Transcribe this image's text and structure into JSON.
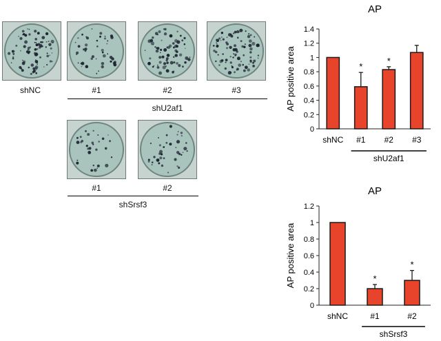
{
  "plates": {
    "row1": [
      {
        "label": "shNC",
        "density": 0.95,
        "seed": 3
      },
      {
        "label": "#1",
        "density": 0.45,
        "seed": 11
      },
      {
        "label": "#2",
        "density": 0.8,
        "seed": 19
      },
      {
        "label": "#3",
        "density": 1.0,
        "seed": 27
      }
    ],
    "row1_group_label": "shU2af1",
    "row2": [
      {
        "label": "#1",
        "density": 0.25,
        "seed": 41
      },
      {
        "label": "#2",
        "density": 0.35,
        "seed": 53
      }
    ],
    "row2_group_label": "shSrsf3"
  },
  "colors": {
    "bar": "#e8432b",
    "plate_bg": "#a9c4bc",
    "colony": "#1a2130"
  },
  "chart_data": [
    {
      "type": "bar",
      "title": "AP",
      "ylabel": "AP positive area",
      "categories": [
        "shNC",
        "#1",
        "#2",
        "#3"
      ],
      "values": [
        1.0,
        0.59,
        0.83,
        1.07
      ],
      "errors": [
        0,
        0.2,
        0.04,
        0.1
      ],
      "significance": [
        "",
        "*",
        "*",
        ""
      ],
      "ylim": [
        0,
        1.4
      ],
      "yticks": [
        "0",
        "0.2",
        "0.4",
        "0.6",
        "0.8",
        "1",
        "1.2",
        "1.4"
      ],
      "group_label": "shU2af1",
      "group_span": [
        1,
        3
      ]
    },
    {
      "type": "bar",
      "title": "AP",
      "ylabel": "AP positive area",
      "categories": [
        "shNC",
        "#1",
        "#2"
      ],
      "values": [
        1.0,
        0.2,
        0.3
      ],
      "errors": [
        0,
        0.05,
        0.12
      ],
      "significance": [
        "",
        "*",
        "*"
      ],
      "ylim": [
        0,
        1.2
      ],
      "yticks": [
        "0",
        "0.2",
        "0.4",
        "0.6",
        "0.8",
        "1",
        "1.2"
      ],
      "group_label": "shSrsf3",
      "group_span": [
        1,
        2
      ]
    }
  ]
}
